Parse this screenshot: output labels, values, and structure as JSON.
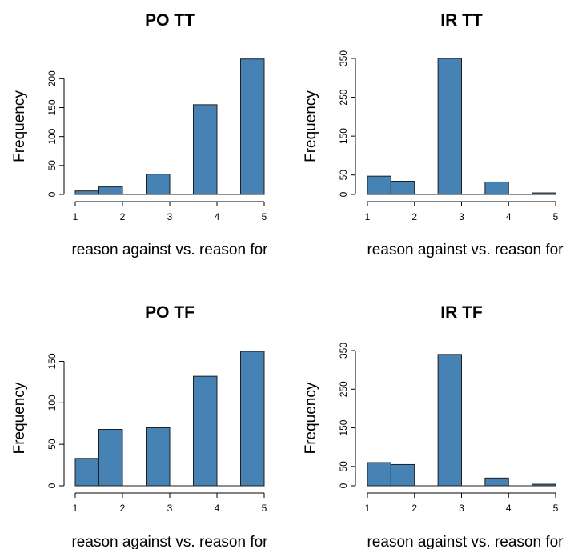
{
  "chart_data": [
    {
      "type": "bar",
      "title": "PO TT",
      "xlabel": "reason against vs. reason for",
      "ylabel": "Frequency",
      "x_ticks": [
        1,
        2,
        3,
        4,
        5
      ],
      "y_ticks": [
        0,
        50,
        100,
        150,
        200
      ],
      "xlim": [
        1,
        5
      ],
      "ylim": [
        0,
        235
      ],
      "bins": [
        [
          1,
          1.5
        ],
        [
          1.5,
          2
        ],
        [
          2,
          2.5
        ],
        [
          2.5,
          3
        ],
        [
          3,
          3.5
        ],
        [
          3.5,
          4
        ],
        [
          4,
          4.5
        ],
        [
          4.5,
          5
        ]
      ],
      "values": [
        6,
        13,
        0,
        35,
        0,
        155,
        0,
        234
      ],
      "bar_color": "#4682b4"
    },
    {
      "type": "bar",
      "title": "IR TT",
      "xlabel": "reason against vs. reason for",
      "ylabel": "Frequency",
      "x_ticks": [
        1,
        2,
        3,
        4,
        5
      ],
      "y_ticks": [
        0,
        50,
        150,
        250,
        350
      ],
      "xlim": [
        1,
        5
      ],
      "ylim": [
        0,
        350
      ],
      "bins": [
        [
          1,
          1.5
        ],
        [
          1.5,
          2
        ],
        [
          2,
          2.5
        ],
        [
          2.5,
          3
        ],
        [
          3,
          3.5
        ],
        [
          3.5,
          4
        ],
        [
          4,
          4.5
        ],
        [
          4.5,
          5
        ]
      ],
      "values": [
        47,
        34,
        0,
        350,
        0,
        32,
        0,
        4
      ],
      "bar_color": "#4682b4"
    },
    {
      "type": "bar",
      "title": "PO TF",
      "xlabel": "reason against vs. reason for",
      "ylabel": "Frequency",
      "x_ticks": [
        1,
        2,
        3,
        4,
        5
      ],
      "y_ticks": [
        0,
        50,
        100,
        150
      ],
      "xlim": [
        1,
        5
      ],
      "ylim": [
        0,
        163
      ],
      "bins": [
        [
          1,
          1.5
        ],
        [
          1.5,
          2
        ],
        [
          2,
          2.5
        ],
        [
          2.5,
          3
        ],
        [
          3,
          3.5
        ],
        [
          3.5,
          4
        ],
        [
          4,
          4.5
        ],
        [
          4.5,
          5
        ]
      ],
      "values": [
        33,
        68,
        0,
        70,
        0,
        132,
        0,
        162
      ],
      "bar_color": "#4682b4"
    },
    {
      "type": "bar",
      "title": "IR TF",
      "xlabel": "reason against vs. reason for",
      "ylabel": "Frequency",
      "x_ticks": [
        1,
        2,
        3,
        4,
        5
      ],
      "y_ticks": [
        0,
        50,
        150,
        250,
        350
      ],
      "xlim": [
        1,
        5
      ],
      "ylim": [
        0,
        350
      ],
      "bins": [
        [
          1,
          1.5
        ],
        [
          1.5,
          2
        ],
        [
          2,
          2.5
        ],
        [
          2.5,
          3
        ],
        [
          3,
          3.5
        ],
        [
          3.5,
          4
        ],
        [
          4,
          4.5
        ],
        [
          4.5,
          5
        ]
      ],
      "values": [
        60,
        55,
        0,
        340,
        0,
        20,
        0,
        4
      ],
      "bar_color": "#4682b4"
    }
  ]
}
